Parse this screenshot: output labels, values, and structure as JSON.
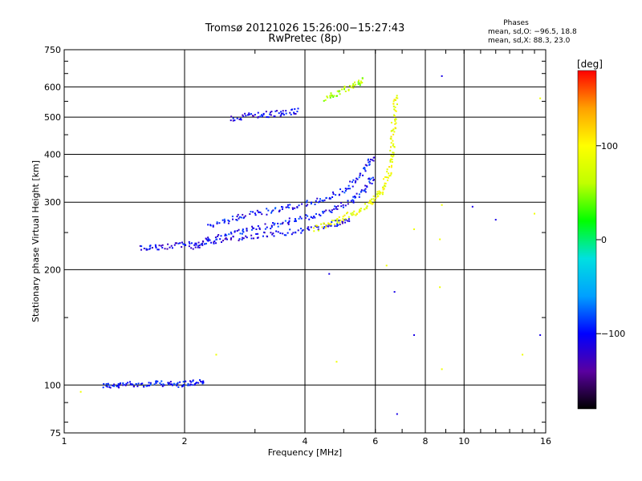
{
  "chart_data": {
    "type": "scatter",
    "title": "Tromsø 20121026 15:26:00−15:27:43",
    "subtitle": "RwPretec (8p)",
    "xlabel": "Frequency [MHz]",
    "ylabel": "Stationary phase Virtual Height [km]",
    "x_scale": "log",
    "y_scale": "log",
    "xlim": [
      1,
      16
    ],
    "ylim": [
      75,
      750
    ],
    "x_ticks": [
      1,
      2,
      4,
      6,
      8,
      10,
      16
    ],
    "x_tick_labels": [
      "1",
      "2",
      "4",
      "6",
      "8",
      "10",
      "16"
    ],
    "y_ticks": [
      75,
      100,
      200,
      300,
      400,
      500,
      600,
      750
    ],
    "y_tick_labels": [
      "75",
      "100",
      "200",
      "300",
      "400",
      "500",
      "600",
      "750"
    ],
    "grid": true,
    "info": {
      "heading": "Phases",
      "line_o": "mean, sd,O: −96.5, 18.8",
      "line_x": "mean, sd,X:  88.3, 23.0"
    },
    "colorbar": {
      "label": "[deg]",
      "min": -180,
      "max": 180,
      "ticks": [
        100,
        0,
        -100
      ],
      "tick_labels": [
        "100",
        "0",
        "−100"
      ],
      "colors": [
        "#000000",
        "#5a00a0",
        "#0000ff",
        "#00a0ff",
        "#00e0e0",
        "#00ff00",
        "#c0ff00",
        "#ffff00",
        "#ffa000",
        "#ff0000"
      ]
    },
    "traces": [
      {
        "name": "",
        "phase": -100,
        "points": [
          [
            1.25,
            100
          ],
          [
            1.35,
            99
          ],
          [
            1.45,
            101
          ],
          [
            1.6,
            100
          ],
          [
            1.75,
            101
          ],
          [
            1.9,
            100
          ],
          [
            2.05,
            101
          ],
          [
            2.2,
            102
          ]
        ]
      },
      {
        "name": "",
        "phase": -110,
        "points": [
          [
            1.55,
            227
          ],
          [
            1.7,
            228
          ],
          [
            1.9,
            231
          ],
          [
            2.1,
            234
          ],
          [
            2.4,
            238
          ],
          [
            2.8,
            242
          ],
          [
            3.2,
            247
          ],
          [
            3.7,
            251
          ],
          [
            4.2,
            256
          ],
          [
            4.7,
            262
          ],
          [
            5.1,
            268
          ]
        ]
      },
      {
        "name": "",
        "phase": -100,
        "points": [
          [
            2.1,
            228
          ],
          [
            2.3,
            238
          ],
          [
            2.6,
            248
          ],
          [
            2.9,
            255
          ],
          [
            3.3,
            261
          ],
          [
            3.7,
            268
          ],
          [
            4.2,
            276
          ],
          [
            4.7,
            287
          ],
          [
            5.2,
            302
          ],
          [
            5.6,
            322
          ],
          [
            5.9,
            345
          ]
        ]
      },
      {
        "name": "",
        "phase": -100,
        "points": [
          [
            2.3,
            258
          ],
          [
            2.6,
            270
          ],
          [
            2.9,
            278
          ],
          [
            3.3,
            285
          ],
          [
            3.7,
            292
          ],
          [
            4.2,
            300
          ],
          [
            4.7,
            312
          ],
          [
            5.2,
            330
          ],
          [
            5.6,
            360
          ],
          [
            5.9,
            390
          ]
        ]
      },
      {
        "name": "",
        "phase": 90,
        "points": [
          [
            4.2,
            255
          ],
          [
            4.6,
            264
          ],
          [
            5.0,
            273
          ],
          [
            5.4,
            283
          ],
          [
            5.8,
            296
          ],
          [
            6.1,
            312
          ],
          [
            6.3,
            330
          ],
          [
            6.5,
            360
          ],
          [
            6.6,
            400
          ],
          [
            6.65,
            450
          ],
          [
            6.7,
            500
          ],
          [
            6.75,
            560
          ]
        ]
      },
      {
        "name": "",
        "phase": -110,
        "points": [
          [
            2.6,
            495
          ],
          [
            2.9,
            505
          ],
          [
            3.2,
            508
          ],
          [
            3.5,
            512
          ],
          [
            3.8,
            518
          ]
        ]
      },
      {
        "name": "",
        "phase": 60,
        "points": [
          [
            4.5,
            560
          ],
          [
            4.8,
            575
          ],
          [
            5.2,
            600
          ],
          [
            5.6,
            625
          ]
        ]
      },
      {
        "name": "",
        "phase": 90,
        "points": [
          [
            1.1,
            96
          ],
          [
            2.4,
            120
          ],
          [
            4.8,
            115
          ],
          [
            6.4,
            205
          ],
          [
            7.5,
            255
          ],
          [
            8.7,
            240
          ],
          [
            8.8,
            295
          ],
          [
            8.7,
            180
          ],
          [
            8.8,
            110
          ],
          [
            14.0,
            120
          ],
          [
            15.0,
            280
          ],
          [
            15.5,
            560
          ]
        ]
      },
      {
        "name": "",
        "phase": -110,
        "points": [
          [
            4.6,
            195
          ],
          [
            6.7,
            175
          ],
          [
            6.8,
            84
          ],
          [
            7.5,
            135
          ],
          [
            8.8,
            640
          ],
          [
            10.5,
            292
          ],
          [
            12.0,
            270
          ],
          [
            15.5,
            135
          ]
        ]
      }
    ]
  }
}
